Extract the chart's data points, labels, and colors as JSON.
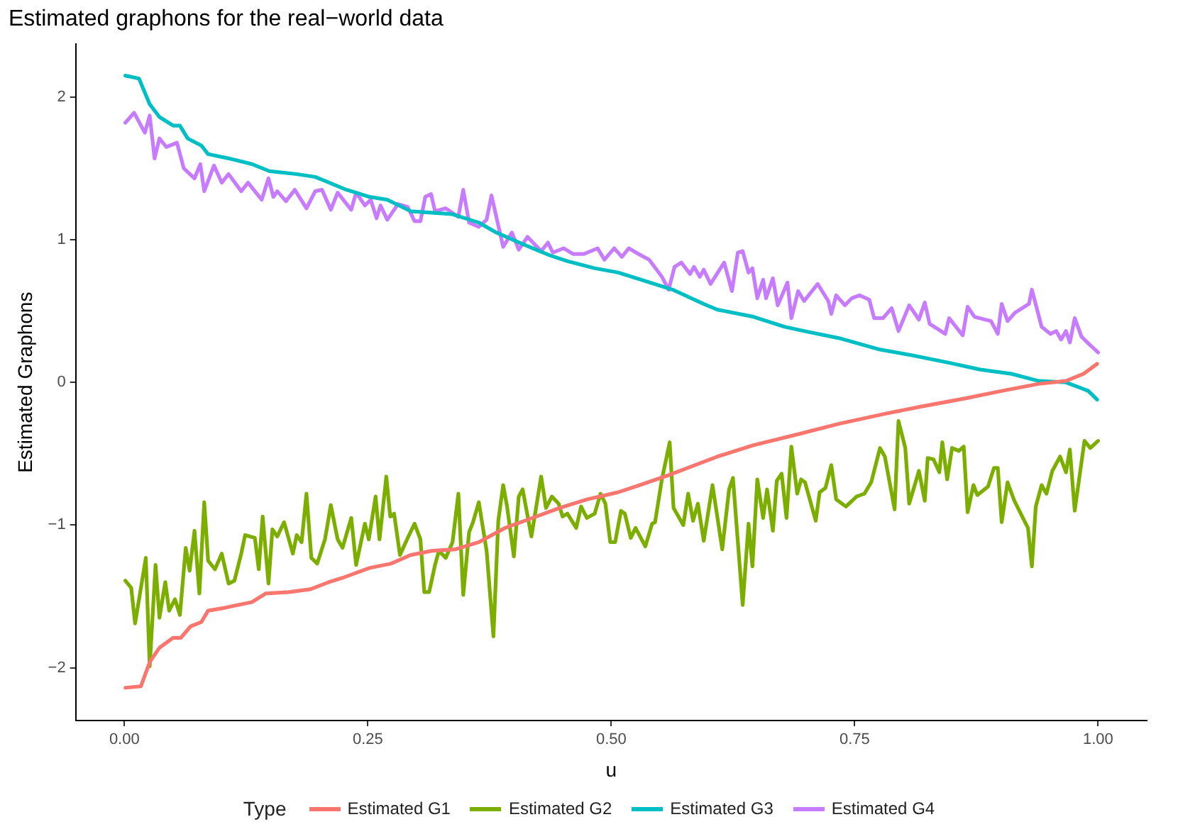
{
  "chart_data": {
    "type": "line",
    "title": "Estimated graphons for the real−world data",
    "xlabel": "u",
    "ylabel": "Estimated Graphons",
    "legend_title": "Type",
    "legend": "bottom",
    "grid": false,
    "marker": "none",
    "line_style": "solid",
    "xlim": [
      -0.05,
      1.05
    ],
    "xticks": [
      {
        "value": 0,
        "label": "0.00"
      },
      {
        "value": 0.25,
        "label": "0.25"
      },
      {
        "value": 0.5,
        "label": "0.50"
      },
      {
        "value": 0.75,
        "label": "0.75"
      },
      {
        "value": 1,
        "label": "1.00"
      }
    ],
    "ylim": [
      -2.37,
      2.37
    ],
    "yticks": [
      {
        "value": -2,
        "label": "−2"
      },
      {
        "value": -1,
        "label": "−1"
      },
      0,
      1,
      2
    ],
    "series": [
      {
        "name": "Estimated G1",
        "color": "#f8766d",
        "x": [
          0.001,
          0.017,
          0.026,
          0.036,
          0.05,
          0.058,
          0.068,
          0.079,
          0.086,
          0.103,
          0.131,
          0.145,
          0.169,
          0.191,
          0.21,
          0.224,
          0.252,
          0.274,
          0.294,
          0.316,
          0.34,
          0.364,
          0.391,
          0.419,
          0.447,
          0.475,
          0.507,
          0.525,
          0.559,
          0.586,
          0.609,
          0.646,
          0.688,
          0.734,
          0.781,
          0.818,
          0.865,
          0.901,
          0.939,
          0.967,
          0.985,
          0.999
        ],
        "values": [
          -2.14,
          -2.13,
          -1.96,
          -1.86,
          -1.79,
          -1.79,
          -1.71,
          -1.68,
          -1.6,
          -1.58,
          -1.54,
          -1.48,
          -1.47,
          -1.45,
          -1.4,
          -1.37,
          -1.3,
          -1.27,
          -1.21,
          -1.18,
          -1.17,
          -1.12,
          -1.02,
          -0.95,
          -0.88,
          -0.82,
          -0.77,
          -0.73,
          -0.65,
          -0.58,
          -0.52,
          -0.44,
          -0.37,
          -0.29,
          -0.22,
          -0.17,
          -0.11,
          -0.06,
          -0.01,
          0.01,
          0.06,
          0.13
        ]
      },
      {
        "name": "Estimated G2",
        "color": "#7cae00",
        "x": [
          0.001,
          0.007,
          0.011,
          0.022,
          0.026,
          0.032,
          0.036,
          0.042,
          0.046,
          0.052,
          0.057,
          0.063,
          0.067,
          0.072,
          0.077,
          0.082,
          0.086,
          0.093,
          0.1,
          0.107,
          0.113,
          0.12,
          0.124,
          0.134,
          0.138,
          0.142,
          0.148,
          0.152,
          0.157,
          0.164,
          0.173,
          0.177,
          0.182,
          0.187,
          0.192,
          0.198,
          0.206,
          0.212,
          0.219,
          0.224,
          0.233,
          0.238,
          0.247,
          0.251,
          0.258,
          0.262,
          0.269,
          0.273,
          0.277,
          0.283,
          0.291,
          0.298,
          0.304,
          0.308,
          0.313,
          0.319,
          0.323,
          0.33,
          0.337,
          0.343,
          0.348,
          0.354,
          0.358,
          0.364,
          0.372,
          0.379,
          0.384,
          0.389,
          0.393,
          0.4,
          0.405,
          0.409,
          0.418,
          0.428,
          0.433,
          0.439,
          0.446,
          0.45,
          0.455,
          0.464,
          0.469,
          0.475,
          0.483,
          0.489,
          0.494,
          0.499,
          0.504,
          0.51,
          0.514,
          0.52,
          0.525,
          0.535,
          0.542,
          0.545,
          0.552,
          0.56,
          0.564,
          0.574,
          0.579,
          0.584,
          0.589,
          0.595,
          0.604,
          0.614,
          0.621,
          0.625,
          0.635,
          0.641,
          0.645,
          0.65,
          0.656,
          0.66,
          0.666,
          0.67,
          0.675,
          0.68,
          0.685,
          0.691,
          0.695,
          0.699,
          0.71,
          0.714,
          0.72,
          0.726,
          0.731,
          0.741,
          0.752,
          0.76,
          0.767,
          0.776,
          0.781,
          0.791,
          0.795,
          0.802,
          0.806,
          0.816,
          0.822,
          0.825,
          0.831,
          0.837,
          0.84,
          0.845,
          0.85,
          0.857,
          0.862,
          0.866,
          0.872,
          0.876,
          0.887,
          0.893,
          0.897,
          0.901,
          0.907,
          0.914,
          0.925,
          0.928,
          0.932,
          0.936,
          0.942,
          0.947,
          0.953,
          0.961,
          0.967,
          0.971,
          0.976,
          0.986,
          0.992,
          1.0
        ],
        "values": [
          -1.39,
          -1.44,
          -1.69,
          -1.23,
          -1.99,
          -1.28,
          -1.65,
          -1.4,
          -1.6,
          -1.52,
          -1.63,
          -1.16,
          -1.32,
          -1.04,
          -1.48,
          -0.84,
          -1.25,
          -1.31,
          -1.2,
          -1.41,
          -1.39,
          -1.2,
          -1.07,
          -1.09,
          -1.31,
          -0.94,
          -1.41,
          -1.03,
          -1.08,
          -0.98,
          -1.2,
          -1.07,
          -1.12,
          -0.78,
          -1.23,
          -1.27,
          -1.1,
          -0.86,
          -1.1,
          -1.16,
          -0.95,
          -1.28,
          -0.99,
          -1.1,
          -0.8,
          -1.1,
          -0.66,
          -0.94,
          -0.92,
          -1.21,
          -1.09,
          -0.99,
          -1.1,
          -1.47,
          -1.47,
          -1.28,
          -1.18,
          -1.23,
          -1.12,
          -0.78,
          -1.49,
          -1.05,
          -0.98,
          -0.84,
          -1.18,
          -1.78,
          -0.97,
          -0.72,
          -0.87,
          -1.22,
          -0.8,
          -0.75,
          -1.08,
          -0.66,
          -0.88,
          -0.8,
          -0.85,
          -0.94,
          -0.92,
          -1.02,
          -0.87,
          -0.95,
          -0.92,
          -0.78,
          -0.85,
          -1.12,
          -1.12,
          -0.9,
          -0.92,
          -1.09,
          -1.02,
          -1.15,
          -0.99,
          -0.98,
          -0.68,
          -0.42,
          -0.88,
          -1.0,
          -0.78,
          -0.97,
          -0.85,
          -1.11,
          -0.72,
          -1.17,
          -0.75,
          -0.67,
          -1.56,
          -0.99,
          -1.29,
          -0.68,
          -0.95,
          -0.75,
          -1.04,
          -0.69,
          -0.64,
          -0.95,
          -0.45,
          -0.78,
          -0.68,
          -0.7,
          -0.97,
          -0.77,
          -0.74,
          -0.58,
          -0.82,
          -0.87,
          -0.8,
          -0.78,
          -0.7,
          -0.46,
          -0.52,
          -0.89,
          -0.27,
          -0.46,
          -0.85,
          -0.62,
          -0.83,
          -0.53,
          -0.54,
          -0.63,
          -0.42,
          -0.68,
          -0.46,
          -0.48,
          -0.45,
          -0.91,
          -0.72,
          -0.79,
          -0.73,
          -0.6,
          -0.6,
          -0.98,
          -0.7,
          -0.83,
          -0.98,
          -1.02,
          -1.29,
          -0.87,
          -0.72,
          -0.78,
          -0.62,
          -0.52,
          -0.63,
          -0.47,
          -0.9,
          -0.41,
          -0.46,
          -0.41
        ]
      },
      {
        "name": "Estimated G3",
        "color": "#00bfc4",
        "x": [
          0.001,
          0.015,
          0.026,
          0.036,
          0.05,
          0.057,
          0.065,
          0.079,
          0.086,
          0.107,
          0.131,
          0.149,
          0.177,
          0.196,
          0.214,
          0.228,
          0.252,
          0.27,
          0.294,
          0.336,
          0.364,
          0.382,
          0.409,
          0.437,
          0.455,
          0.483,
          0.507,
          0.521,
          0.563,
          0.595,
          0.609,
          0.646,
          0.678,
          0.698,
          0.734,
          0.776,
          0.809,
          0.845,
          0.879,
          0.911,
          0.939,
          0.967,
          0.99,
          0.999
        ],
        "values": [
          2.15,
          2.13,
          1.95,
          1.86,
          1.8,
          1.8,
          1.71,
          1.66,
          1.6,
          1.57,
          1.53,
          1.48,
          1.46,
          1.44,
          1.39,
          1.35,
          1.3,
          1.28,
          1.2,
          1.18,
          1.12,
          1.05,
          0.97,
          0.89,
          0.85,
          0.8,
          0.77,
          0.74,
          0.65,
          0.55,
          0.51,
          0.46,
          0.39,
          0.36,
          0.31,
          0.23,
          0.19,
          0.14,
          0.09,
          0.06,
          0.01,
          0.0,
          -0.06,
          -0.12
        ]
      },
      {
        "name": "Estimated G4",
        "color": "#c77cff",
        "x": [
          0.001,
          0.01,
          0.021,
          0.026,
          0.031,
          0.036,
          0.043,
          0.054,
          0.061,
          0.072,
          0.078,
          0.082,
          0.092,
          0.1,
          0.107,
          0.12,
          0.127,
          0.141,
          0.148,
          0.153,
          0.157,
          0.166,
          0.175,
          0.187,
          0.196,
          0.203,
          0.212,
          0.219,
          0.233,
          0.238,
          0.247,
          0.253,
          0.259,
          0.263,
          0.27,
          0.281,
          0.291,
          0.298,
          0.304,
          0.309,
          0.315,
          0.319,
          0.33,
          0.343,
          0.348,
          0.354,
          0.364,
          0.372,
          0.377,
          0.389,
          0.398,
          0.405,
          0.414,
          0.428,
          0.435,
          0.44,
          0.451,
          0.461,
          0.472,
          0.486,
          0.493,
          0.503,
          0.511,
          0.518,
          0.528,
          0.539,
          0.552,
          0.559,
          0.565,
          0.572,
          0.581,
          0.585,
          0.591,
          0.595,
          0.602,
          0.616,
          0.624,
          0.63,
          0.635,
          0.641,
          0.645,
          0.65,
          0.656,
          0.659,
          0.666,
          0.671,
          0.681,
          0.685,
          0.692,
          0.698,
          0.712,
          0.723,
          0.726,
          0.731,
          0.74,
          0.747,
          0.755,
          0.765,
          0.77,
          0.779,
          0.788,
          0.795,
          0.806,
          0.816,
          0.822,
          0.827,
          0.834,
          0.843,
          0.847,
          0.861,
          0.866,
          0.873,
          0.89,
          0.897,
          0.901,
          0.907,
          0.915,
          0.929,
          0.932,
          0.942,
          0.951,
          0.957,
          0.962,
          0.967,
          0.971,
          0.976,
          0.983,
          0.992,
          1.0
        ],
        "values": [
          1.82,
          1.89,
          1.75,
          1.87,
          1.57,
          1.71,
          1.65,
          1.68,
          1.5,
          1.43,
          1.53,
          1.34,
          1.52,
          1.4,
          1.46,
          1.34,
          1.4,
          1.28,
          1.43,
          1.3,
          1.34,
          1.27,
          1.35,
          1.22,
          1.34,
          1.35,
          1.21,
          1.33,
          1.21,
          1.33,
          1.24,
          1.28,
          1.15,
          1.24,
          1.14,
          1.25,
          1.23,
          1.13,
          1.13,
          1.3,
          1.32,
          1.2,
          1.22,
          1.16,
          1.35,
          1.12,
          1.09,
          1.14,
          1.31,
          0.95,
          1.05,
          0.93,
          1.02,
          0.92,
          0.98,
          0.91,
          0.94,
          0.9,
          0.9,
          0.94,
          0.86,
          0.94,
          0.88,
          0.94,
          0.9,
          0.86,
          0.74,
          0.65,
          0.81,
          0.84,
          0.76,
          0.81,
          0.74,
          0.79,
          0.69,
          0.84,
          0.64,
          0.91,
          0.92,
          0.77,
          0.8,
          0.59,
          0.72,
          0.59,
          0.73,
          0.54,
          0.7,
          0.45,
          0.64,
          0.57,
          0.69,
          0.57,
          0.48,
          0.61,
          0.54,
          0.59,
          0.61,
          0.58,
          0.45,
          0.45,
          0.52,
          0.36,
          0.54,
          0.44,
          0.56,
          0.41,
          0.38,
          0.34,
          0.45,
          0.33,
          0.53,
          0.46,
          0.43,
          0.34,
          0.55,
          0.43,
          0.49,
          0.55,
          0.65,
          0.39,
          0.34,
          0.36,
          0.3,
          0.36,
          0.28,
          0.45,
          0.32,
          0.26,
          0.21
        ]
      }
    ]
  }
}
